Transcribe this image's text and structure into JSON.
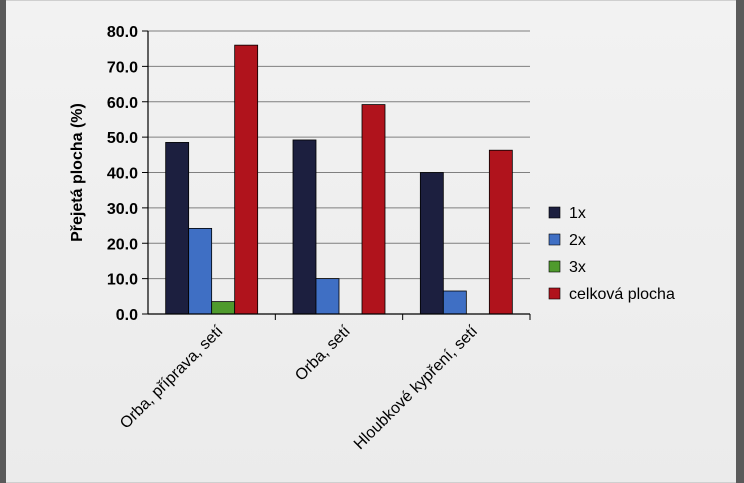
{
  "chart_data": {
    "type": "bar",
    "title": "",
    "xlabel": "",
    "ylabel": "Přejetá plocha (%)",
    "ylim": [
      0,
      80
    ],
    "yticks": [
      "0.0",
      "10.0",
      "20.0",
      "30.0",
      "40.0",
      "50.0",
      "60.0",
      "70.0",
      "80.0"
    ],
    "grid": true,
    "legend_position": "right",
    "categories": [
      "Orba, příprava, setí",
      "Orba, setí",
      "Hloubkové kypření, setí"
    ],
    "series": [
      {
        "name": "1x",
        "color": "#1c1f3f",
        "values": [
          48.5,
          49.2,
          40.0
        ]
      },
      {
        "name": "2x",
        "color": "#3f6fc4",
        "values": [
          24.2,
          10.0,
          6.5
        ]
      },
      {
        "name": "3x",
        "color": "#4f9a2d",
        "values": [
          3.5,
          0,
          0
        ]
      },
      {
        "name": "celková plocha",
        "color": "#b0131c",
        "values": [
          76.0,
          59.2,
          46.3
        ]
      }
    ]
  }
}
